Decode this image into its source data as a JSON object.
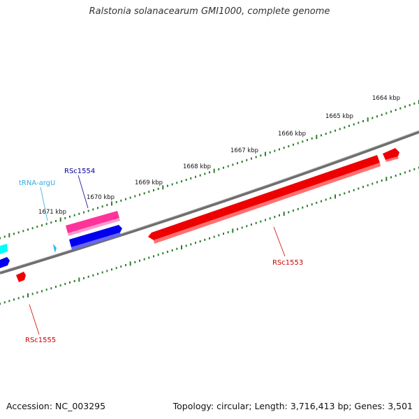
{
  "title": "Ralstonia solanacearum GMI1000, complete genome",
  "footer": {
    "accession": "Accession: NC_003295",
    "summary": "Topology: circular; Length: 3,716,413 bp; Genes: 3,501"
  },
  "scale_labels": [
    "1671 kbp",
    "1670 kbp",
    "1669 kbp",
    "1668 kbp",
    "1667 kbp",
    "1666 kbp",
    "1665 kbp",
    "1664 kbp"
  ],
  "gene_labels": {
    "trna": "tRNA-argU",
    "rsc1554": "RSc1554",
    "rsc1553": "RSc1553",
    "rsc1555": "RSc1555"
  },
  "colors": {
    "backbone": "#808080",
    "ticks": "#2e7d2e",
    "cds_red": "#ff0000",
    "cds_blue": "#0000ee",
    "cds_pink": "#ff3399",
    "trna": "#33bbee",
    "cyan": "#00ffff",
    "label_red": "#cc0000",
    "label_blue": "#000099",
    "label_trna": "#33aadd"
  }
}
